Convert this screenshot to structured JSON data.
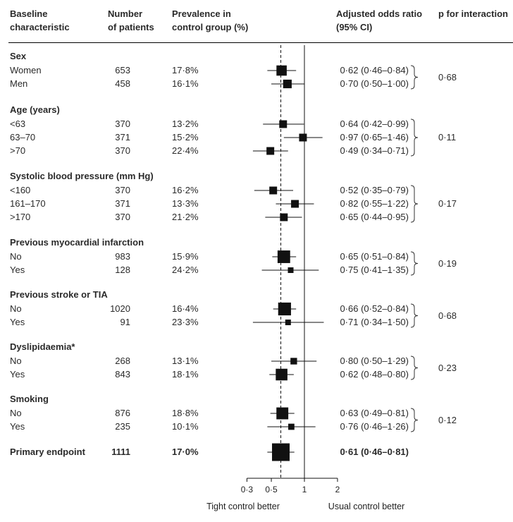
{
  "headers": {
    "baseline": [
      "Baseline",
      "characteristic"
    ],
    "number": [
      "Number",
      "of patients"
    ],
    "prevalence": [
      "Prevalence in",
      "control group (%)"
    ],
    "odds": [
      "Adjusted odds ratio",
      "(95% CI)"
    ],
    "pint": "p for interaction"
  },
  "chart_data": {
    "type": "forest",
    "x_scale": "log",
    "x_ticks": [
      {
        "value": 0.3,
        "label": "0·3"
      },
      {
        "value": 0.5,
        "label": "0·5"
      },
      {
        "value": 1,
        "label": "1"
      },
      {
        "value": 2,
        "label": "2"
      }
    ],
    "reference_line": 1,
    "dashed_line": 0.61,
    "xlabel_left": "Tight control better",
    "xlabel_right": "Usual control better",
    "groups": [
      {
        "label": "Sex",
        "p_interaction": "0·68",
        "rows": [
          {
            "label": "Women",
            "n": "653",
            "prev": "17·8%",
            "or": 0.62,
            "lo": 0.46,
            "hi": 0.84,
            "ci_text": "0·62 (0·46–0·84)"
          },
          {
            "label": "Men",
            "n": "458",
            "prev": "16·1%",
            "or": 0.7,
            "lo": 0.5,
            "hi": 1.0,
            "ci_text": "0·70 (0·50–1·00)"
          }
        ]
      },
      {
        "label": "Age (years)",
        "p_interaction": "0·11",
        "rows": [
          {
            "label": "<63",
            "n": "370",
            "prev": "13·2%",
            "or": 0.64,
            "lo": 0.42,
            "hi": 0.99,
            "ci_text": "0·64 (0·42–0·99)"
          },
          {
            "label": "63–70",
            "n": "371",
            "prev": "15·2%",
            "or": 0.97,
            "lo": 0.65,
            "hi": 1.46,
            "ci_text": "0·97 (0·65–1·46)"
          },
          {
            "label": ">70",
            "n": "370",
            "prev": "22·4%",
            "or": 0.49,
            "lo": 0.34,
            "hi": 0.71,
            "ci_text": "0·49 (0·34–0·71)"
          }
        ]
      },
      {
        "label": "Systolic blood pressure (mm Hg)",
        "p_interaction": "0·17",
        "rows": [
          {
            "label": "<160",
            "n": "370",
            "prev": "16·2%",
            "or": 0.52,
            "lo": 0.35,
            "hi": 0.79,
            "ci_text": "0·52 (0·35–0·79)"
          },
          {
            "label": "161–170",
            "n": "371",
            "prev": "13·3%",
            "or": 0.82,
            "lo": 0.55,
            "hi": 1.22,
            "ci_text": "0·82 (0·55–1·22)"
          },
          {
            "label": ">170",
            "n": "370",
            "prev": "21·2%",
            "or": 0.65,
            "lo": 0.44,
            "hi": 0.95,
            "ci_text": "0·65 (0·44–0·95)"
          }
        ]
      },
      {
        "label": "Previous myocardial infarction",
        "p_interaction": "0·19",
        "rows": [
          {
            "label": "No",
            "n": "983",
            "prev": "15·9%",
            "or": 0.65,
            "lo": 0.51,
            "hi": 0.84,
            "ci_text": "0·65 (0·51–0·84)"
          },
          {
            "label": "Yes",
            "n": "128",
            "prev": "24·2%",
            "or": 0.75,
            "lo": 0.41,
            "hi": 1.35,
            "ci_text": "0·75 (0·41–1·35)"
          }
        ]
      },
      {
        "label": "Previous stroke or TIA",
        "p_interaction": "0·68",
        "rows": [
          {
            "label": "No",
            "n": "1020",
            "prev": "16·4%",
            "or": 0.66,
            "lo": 0.52,
            "hi": 0.84,
            "ci_text": "0·66 (0·52–0·84)"
          },
          {
            "label": "Yes",
            "n": "91",
            "prev": "23·3%",
            "or": 0.71,
            "lo": 0.34,
            "hi": 1.5,
            "ci_text": "0·71 (0·34–1·50)"
          }
        ]
      },
      {
        "label": "Dyslipidaemia*",
        "p_interaction": "0·23",
        "rows": [
          {
            "label": "No",
            "n": "268",
            "prev": "13·1%",
            "or": 0.8,
            "lo": 0.5,
            "hi": 1.29,
            "ci_text": "0·80 (0·50–1·29)"
          },
          {
            "label": "Yes",
            "n": "843",
            "prev": "18·1%",
            "or": 0.62,
            "lo": 0.48,
            "hi": 0.8,
            "ci_text": "0·62 (0·48–0·80)"
          }
        ]
      },
      {
        "label": "Smoking",
        "p_interaction": "0·12",
        "rows": [
          {
            "label": "No",
            "n": "876",
            "prev": "18·8%",
            "or": 0.63,
            "lo": 0.49,
            "hi": 0.81,
            "ci_text": "0·63 (0·49–0·81)"
          },
          {
            "label": "Yes",
            "n": "235",
            "prev": "10·1%",
            "or": 0.76,
            "lo": 0.46,
            "hi": 1.26,
            "ci_text": "0·76 (0·46–1·26)"
          }
        ]
      }
    ],
    "overall": {
      "label": "Primary endpoint",
      "n": "1111",
      "prev": "17·0%",
      "or": 0.61,
      "lo": 0.46,
      "hi": 0.81,
      "ci_text": "0·61 (0·46–0·81)"
    }
  }
}
